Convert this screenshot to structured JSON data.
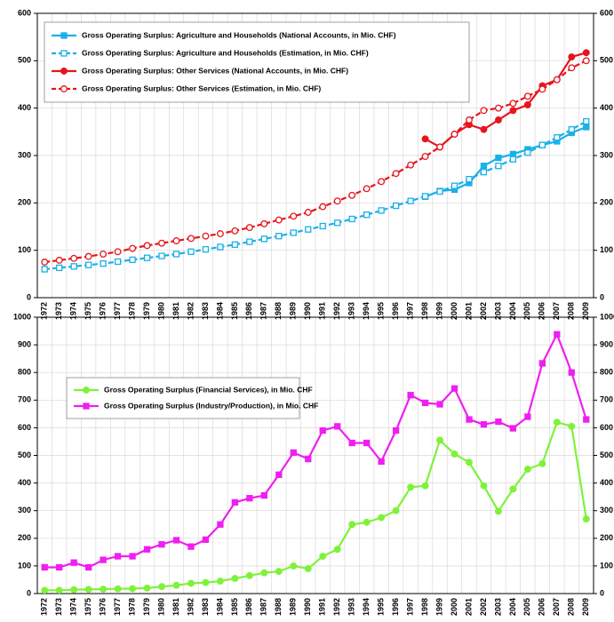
{
  "chart_data": [
    {
      "type": "line",
      "grid": true,
      "legend": "upper left",
      "categories": [
        "1972",
        "1973",
        "1974",
        "1975",
        "1976",
        "1977",
        "1978",
        "1979",
        "1980",
        "1981",
        "1982",
        "1983",
        "1984",
        "1985",
        "1986",
        "1987",
        "1988",
        "1989",
        "1990",
        "1991",
        "1992",
        "1993",
        "1994",
        "1995",
        "1996",
        "1997",
        "1998",
        "1999",
        "2000",
        "2001",
        "2002",
        "2003",
        "2004",
        "2005",
        "2006",
        "2007",
        "2008",
        "2009"
      ],
      "ylim": [
        0,
        600
      ],
      "yticks": [
        0,
        100,
        200,
        300,
        400,
        500,
        600
      ],
      "y2lim": [
        0,
        600
      ],
      "y2ticks": [
        0,
        100,
        200,
        300,
        400,
        500,
        600
      ],
      "series": [
        {
          "name": "Gross Operating Surplus: Agriculture and Households (National Accounts, in Mio. CHF)",
          "color": "#1ab0e8",
          "marker": "square",
          "dash": false,
          "filled": true,
          "values": [
            null,
            null,
            null,
            null,
            null,
            null,
            null,
            null,
            null,
            null,
            null,
            null,
            null,
            null,
            null,
            null,
            null,
            null,
            null,
            null,
            null,
            null,
            null,
            null,
            null,
            null,
            213,
            225,
            228,
            242,
            278,
            295,
            303,
            313,
            322,
            330,
            348,
            360
          ]
        },
        {
          "name": "Gross Operating Surplus: Agriculture and Households (Estimation, in Mio. CHF)",
          "color": "#1ab0e8",
          "marker": "square",
          "dash": true,
          "filled": false,
          "values": [
            60,
            63,
            66,
            69,
            72,
            76,
            80,
            84,
            88,
            92,
            97,
            102,
            107,
            112,
            118,
            124,
            130,
            137,
            144,
            151,
            158,
            166,
            175,
            184,
            194,
            204,
            214,
            224,
            236,
            250,
            265,
            278,
            292,
            306,
            322,
            338,
            355,
            372
          ]
        },
        {
          "name": "Gross Operating Surplus: Other Services (National Accounts, in Mio. CHF)",
          "color": "#e8141c",
          "marker": "circle",
          "dash": false,
          "filled": true,
          "values": [
            null,
            null,
            null,
            null,
            null,
            null,
            null,
            null,
            null,
            null,
            null,
            null,
            null,
            null,
            null,
            null,
            null,
            null,
            null,
            null,
            null,
            null,
            null,
            null,
            null,
            null,
            335,
            318,
            345,
            365,
            355,
            375,
            395,
            407,
            447,
            460,
            508,
            517
          ]
        },
        {
          "name": "Gross Operating Surplus: Other Services (Estimation, in Mio. CHF)",
          "color": "#e8141c",
          "marker": "circle",
          "dash": true,
          "filled": false,
          "values": [
            75,
            79,
            83,
            87,
            92,
            97,
            104,
            110,
            115,
            120,
            125,
            130,
            135,
            141,
            148,
            156,
            164,
            172,
            180,
            192,
            204,
            216,
            230,
            245,
            262,
            280,
            298,
            318,
            345,
            375,
            395,
            400,
            410,
            425,
            440,
            460,
            485,
            500
          ]
        }
      ]
    },
    {
      "type": "line",
      "grid": true,
      "legend": "upper left",
      "categories": [
        "1972",
        "1973",
        "1974",
        "1975",
        "1976",
        "1977",
        "1978",
        "1979",
        "1980",
        "1981",
        "1982",
        "1983",
        "1984",
        "1985",
        "1986",
        "1987",
        "1988",
        "1989",
        "1990",
        "1991",
        "1992",
        "1993",
        "1994",
        "1995",
        "1996",
        "1997",
        "1998",
        "1999",
        "2000",
        "2001",
        "2002",
        "2003",
        "2004",
        "2005",
        "2006",
        "2007",
        "2008",
        "2009"
      ],
      "ylim": [
        0,
        1000
      ],
      "yticks": [
        0,
        100,
        200,
        300,
        400,
        500,
        600,
        700,
        800,
        900,
        1000
      ],
      "y2lim": [
        0,
        1000
      ],
      "y2ticks": [
        0,
        100,
        200,
        300,
        400,
        500,
        600,
        700,
        800,
        900,
        1000
      ],
      "series": [
        {
          "name": "Gross Operating Surplus (Financial Services), in Mio. CHF",
          "color": "#7ef23a",
          "marker": "circle",
          "dash": false,
          "filled": true,
          "values": [
            12,
            12,
            14,
            15,
            16,
            17,
            18,
            20,
            25,
            30,
            37,
            40,
            45,
            55,
            65,
            75,
            80,
            100,
            90,
            135,
            160,
            250,
            258,
            275,
            300,
            385,
            390,
            555,
            505,
            475,
            390,
            298,
            378,
            450,
            470,
            620,
            605,
            270
          ]
        },
        {
          "name": "Gross Operating Surplus (Industry/Production), in Mio. CHF",
          "color": "#f01ef0",
          "marker": "square",
          "dash": false,
          "filled": true,
          "values": [
            95,
            95,
            112,
            95,
            122,
            135,
            135,
            160,
            178,
            193,
            170,
            195,
            250,
            330,
            345,
            355,
            430,
            510,
            487,
            590,
            605,
            545,
            545,
            478,
            590,
            718,
            690,
            685,
            742,
            630,
            612,
            622,
            598,
            640,
            833,
            938,
            800,
            630
          ]
        }
      ]
    }
  ]
}
